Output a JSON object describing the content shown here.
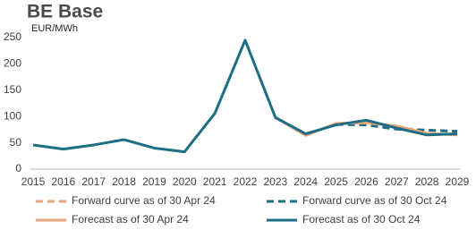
{
  "chart_data": {
    "type": "line",
    "title": "BE Base",
    "subtitle": "EUR/MWh",
    "categories": [
      "2015",
      "2016",
      "2017",
      "2018",
      "2019",
      "2020",
      "2021",
      "2022",
      "2023",
      "2024",
      "2025",
      "2026",
      "2027",
      "2028",
      "2029"
    ],
    "series": [
      {
        "name": "Forward curve as of 30 Apr 24",
        "color": "#e9a47a",
        "dashed": true,
        "values": [
          null,
          null,
          null,
          null,
          null,
          null,
          null,
          null,
          null,
          null,
          86,
          85,
          78,
          74,
          71
        ]
      },
      {
        "name": "Forward curve as of 30 Oct 24",
        "color": "#1d6e84",
        "dashed": true,
        "values": [
          null,
          null,
          null,
          null,
          null,
          null,
          null,
          null,
          null,
          null,
          85,
          84,
          76,
          74,
          72
        ]
      },
      {
        "name": "Forecast as of 30 Apr 24",
        "color": "#e9a47a",
        "dashed": false,
        "values": [
          null,
          null,
          null,
          null,
          null,
          null,
          null,
          null,
          98,
          64,
          87,
          88,
          82,
          68,
          65
        ]
      },
      {
        "name": "Forecast as of 30 Oct 24",
        "color": "#1d6e84",
        "dashed": false,
        "values": [
          46,
          38,
          46,
          56,
          40,
          33,
          106,
          245,
          98,
          67,
          84,
          93,
          78,
          65,
          67
        ]
      }
    ],
    "ylim": [
      0,
      250
    ],
    "yticks": [
      0,
      50,
      100,
      150,
      200,
      250
    ],
    "grid": false
  }
}
